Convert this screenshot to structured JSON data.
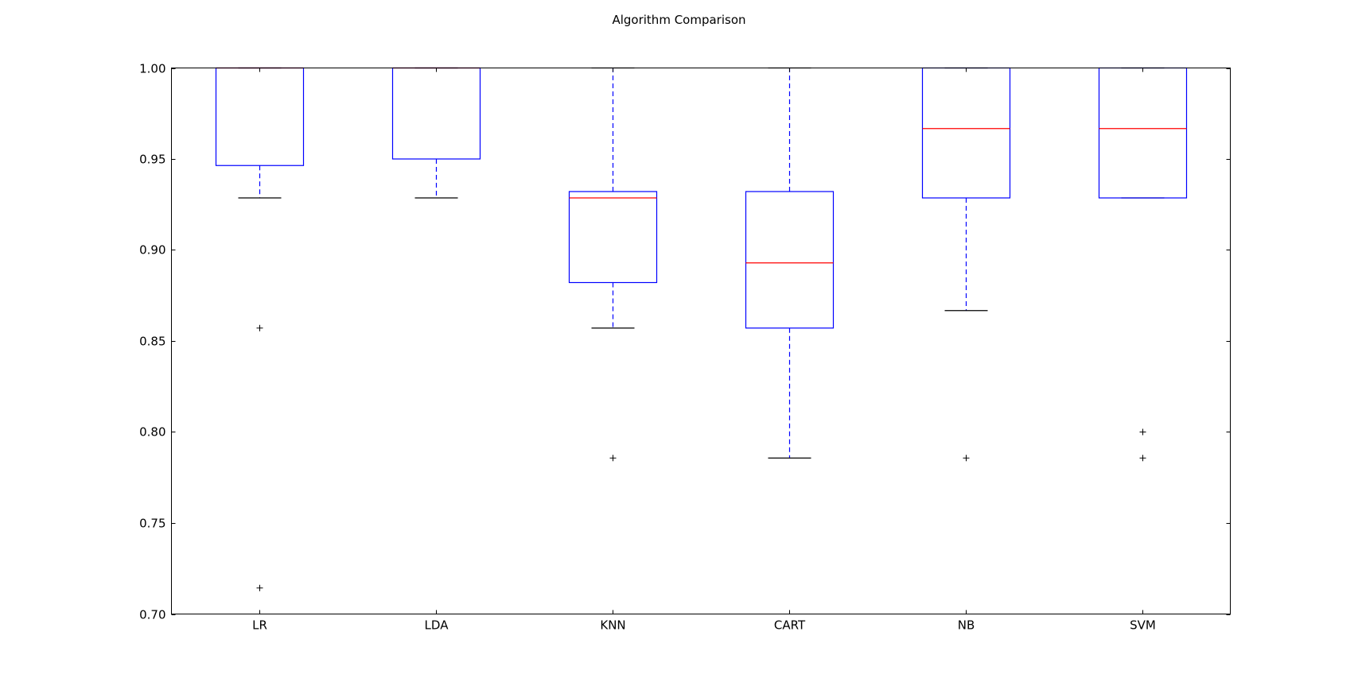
{
  "chart_data": {
    "type": "box",
    "title": "Algorithm Comparison",
    "xlabel": "",
    "ylabel": "",
    "ylim": [
      0.7,
      1.0
    ],
    "yticks": [
      "0.70",
      "0.75",
      "0.80",
      "0.85",
      "0.90",
      "0.95",
      "1.00"
    ],
    "grid": false,
    "colors": {
      "box": "#0000ff",
      "median": "#ff0000",
      "whisker": "#0000ff",
      "cap": "#000000",
      "flier": "#000000"
    },
    "categories": [
      "LR",
      "LDA",
      "KNN",
      "CART",
      "NB",
      "SVM"
    ],
    "boxes": [
      {
        "label": "LR",
        "whislo": 0.9286,
        "q1": 0.9464,
        "med": 1.0,
        "q3": 1.0,
        "whishi": 1.0,
        "fliers": [
          0.8571,
          0.7143
        ]
      },
      {
        "label": "LDA",
        "whislo": 0.9286,
        "q1": 0.95,
        "med": 1.0,
        "q3": 1.0,
        "whishi": 1.0,
        "fliers": []
      },
      {
        "label": "KNN",
        "whislo": 0.8571,
        "q1": 0.8821,
        "med": 0.9286,
        "q3": 0.9321,
        "whishi": 1.0,
        "fliers": [
          0.7857
        ]
      },
      {
        "label": "CART",
        "whislo": 0.7857,
        "q1": 0.8571,
        "med": 0.8929,
        "q3": 0.9321,
        "whishi": 1.0,
        "fliers": []
      },
      {
        "label": "NB",
        "whislo": 0.8667,
        "q1": 0.9286,
        "med": 0.9667,
        "q3": 1.0,
        "whishi": 1.0,
        "fliers": [
          0.7857
        ]
      },
      {
        "label": "SVM",
        "whislo": 0.9286,
        "q1": 0.9286,
        "med": 0.9667,
        "q3": 1.0,
        "whishi": 1.0,
        "fliers": [
          0.8,
          0.7857
        ]
      }
    ]
  }
}
